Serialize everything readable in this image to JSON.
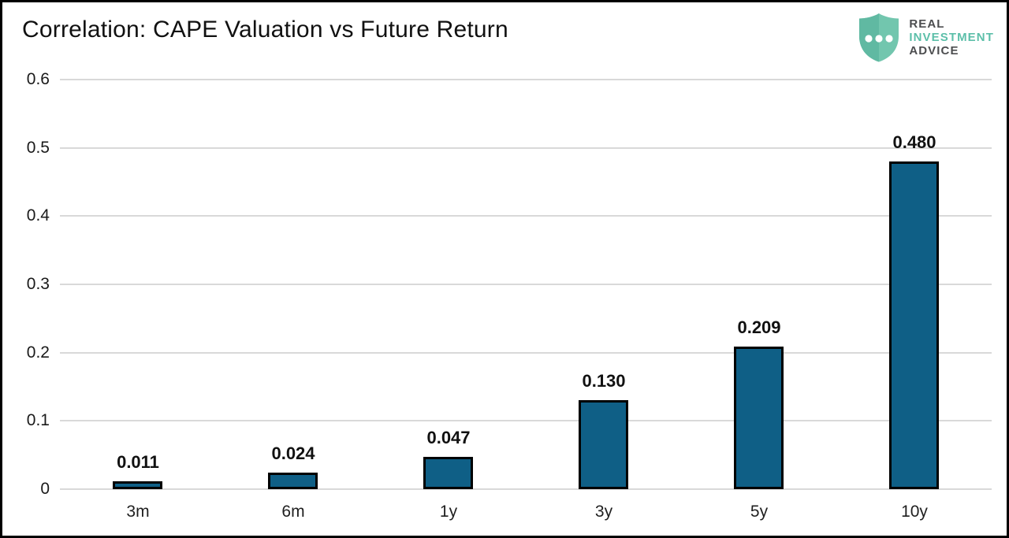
{
  "header": {
    "title": "Correlation: CAPE Valuation vs Future Return"
  },
  "logo": {
    "line1": "REAL",
    "line2": "INVESTMENT",
    "line3": "ADVICE",
    "shield_color_right": "#72c6ae",
    "shield_color_left": "#60b9a2",
    "dot_color": "#ffffff",
    "text_dark_color": "#4c4d4f",
    "text_teal_color": "#5cbfa9"
  },
  "chart_data": {
    "type": "bar",
    "title": "Correlation: CAPE Valuation vs Future Return",
    "categories": [
      "3m",
      "6m",
      "1y",
      "3y",
      "5y",
      "10y"
    ],
    "values": [
      0.011,
      0.024,
      0.047,
      0.13,
      0.209,
      0.48
    ],
    "value_labels": [
      "0.011",
      "0.024",
      "0.047",
      "0.130",
      "0.209",
      "0.480"
    ],
    "xlabel": "",
    "ylabel": "",
    "ylim": [
      0,
      0.6
    ],
    "yticks": [
      "0.6",
      "0.5",
      "0.4",
      "0.3",
      "0.2",
      "0.1",
      "0"
    ],
    "grid": true,
    "legend": "none",
    "bar_color": "#0f5f86",
    "bar_border_color": "#000000",
    "gridline_color": "#d9d9d9"
  }
}
